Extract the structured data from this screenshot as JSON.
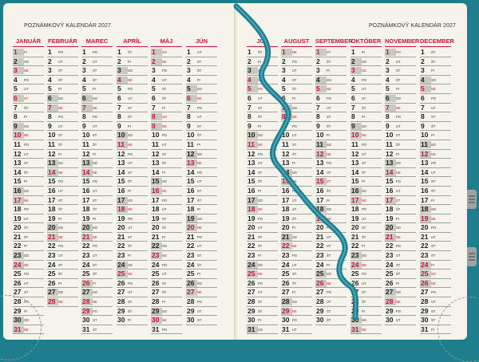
{
  "left_page": {
    "title": "POZNÁMKOVÝ KALENDÁR 2027"
  },
  "right_page": {
    "title": "POZNÁMKOVÝ KALENDÁR 2027"
  },
  "months": [
    {
      "name": "JANUÁR",
      "start": 5,
      "days": 31
    },
    {
      "name": "FEBRUÁR",
      "start": 1,
      "days": 28
    },
    {
      "name": "MAREC",
      "start": 1,
      "days": 31
    },
    {
      "name": "APRÍL",
      "start": 4,
      "days": 30
    },
    {
      "name": "MÁJ",
      "start": 6,
      "days": 31
    },
    {
      "name": "JÚN",
      "start": 2,
      "days": 30
    },
    {
      "name": "JÚL",
      "start": 4,
      "days": 31
    },
    {
      "name": "AUGUST",
      "start": 0,
      "days": 31
    },
    {
      "name": "SEPTEMBER",
      "start": 3,
      "days": 30
    },
    {
      "name": "OKTÓBER",
      "start": 5,
      "days": 31
    },
    {
      "name": "NOVEMBER",
      "start": 1,
      "days": 30
    },
    {
      "name": "DECEMBER",
      "start": 3,
      "days": 31
    }
  ],
  "holidays": [
    [
      1,
      6
    ],
    [],
    [
      26,
      28,
      29
    ],
    [],
    [
      1,
      8
    ],
    [],
    [
      5
    ],
    [
      29
    ],
    [
      1,
      15
    ],
    [],
    [
      1,
      17
    ],
    [
      24,
      25,
      26
    ]
  ],
  "weekday_abbr": [
    "NE",
    "PO",
    "UT",
    "ST",
    "ŠT",
    "PI",
    "SO"
  ],
  "colors": {
    "cover": "#1d7f8e",
    "paper": "#f6f3ea",
    "accent": "#c4153a",
    "ribbon": "#1f7f92"
  }
}
